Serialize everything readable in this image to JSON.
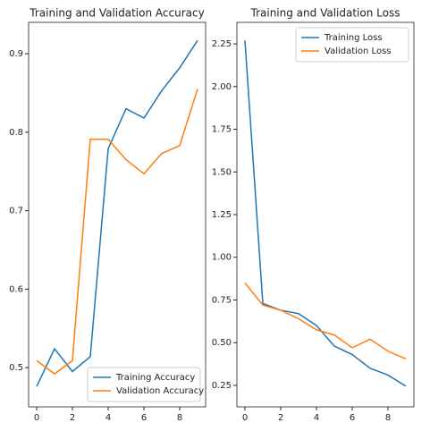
{
  "chart_data": [
    {
      "type": "line",
      "title": "Training and Validation Accuracy",
      "x": [
        0,
        1,
        2,
        3,
        4,
        5,
        6,
        7,
        8,
        9
      ],
      "series": [
        {
          "name": "Training Accuracy",
          "color": "#1f77b4",
          "values": [
            0.476,
            0.524,
            0.495,
            0.514,
            0.779,
            0.83,
            0.818,
            0.853,
            0.882,
            0.917
          ]
        },
        {
          "name": "Validation Accuracy",
          "color": "#ff7f0e",
          "values": [
            0.509,
            0.492,
            0.509,
            0.791,
            0.791,
            0.765,
            0.747,
            0.773,
            0.783,
            0.855
          ]
        }
      ],
      "xlim": [
        -0.45,
        9.45
      ],
      "xticks": [
        0,
        2,
        4,
        6,
        8
      ],
      "ylim": [
        0.45,
        0.94
      ],
      "yticks": [
        0.5,
        0.6,
        0.7,
        0.8,
        0.9
      ],
      "legend": "lower right"
    },
    {
      "type": "line",
      "title": "Training and Validation Loss",
      "x": [
        0,
        1,
        2,
        3,
        4,
        5,
        6,
        7,
        8,
        9
      ],
      "series": [
        {
          "name": "Training Loss",
          "color": "#1f77b4",
          "values": [
            2.27,
            0.73,
            0.69,
            0.67,
            0.6,
            0.48,
            0.43,
            0.35,
            0.31,
            0.245
          ]
        },
        {
          "name": "Validation Loss",
          "color": "#ff7f0e",
          "values": [
            0.85,
            0.72,
            0.69,
            0.64,
            0.575,
            0.545,
            0.47,
            0.52,
            0.45,
            0.405
          ]
        }
      ],
      "xlim": [
        -0.45,
        9.45
      ],
      "xticks": [
        0,
        2,
        4,
        6,
        8
      ],
      "ylim": [
        0.124,
        2.376
      ],
      "yticks": [
        0.25,
        {
          "value": 0.5,
          "label": "0.50"
        },
        0.75,
        {
          "value": 1,
          "label": "1.00"
        },
        1.25,
        {
          "value": 1.5,
          "label": "1.50"
        },
        1.75,
        {
          "value": 2,
          "label": "2.00"
        },
        2.25
      ],
      "legend": "upper right"
    }
  ]
}
